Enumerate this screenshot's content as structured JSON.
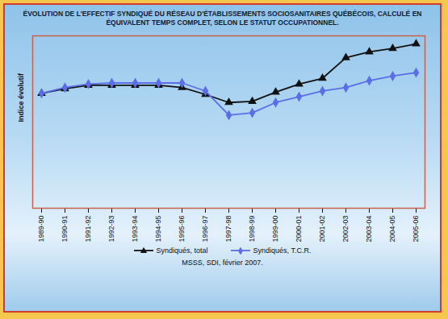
{
  "chart_data": {
    "type": "line",
    "title": "ÉVOLUTION DE L'EFFECTIF SYNDIQUÉ DU RÉSEAU D'ÉTABLISSEMENTS SOCIOSANITAIRES QUÉBÉCOIS, CALCULÉ EN ÉQUIVALENT TEMPS COMPLET, SELON LE STATUT OCCUPATIONNEL.",
    "y_label": "Indice évolutif",
    "caption": "MSSS, SDI, février 2007.",
    "categories": [
      "1989-90",
      "1990-91",
      "1991-92",
      "1992-93",
      "1993-94",
      "1994-95",
      "1995-96",
      "1996-97",
      "1997-98",
      "1998-99",
      "1999-00",
      "2000-01",
      "2001-02",
      "2002-03",
      "2003-04",
      "2004-05",
      "2005-06"
    ],
    "series": [
      {
        "name": "Syndiqués, total",
        "color": "#111111",
        "marker": "triangle",
        "values": [
          100,
          104,
          107,
          107,
          107,
          107,
          105,
          99,
          92,
          93,
          101,
          108,
          113,
          131,
          136,
          139,
          143
        ]
      },
      {
        "name": "Syndiqués, T.C.R.",
        "color": "#5b6ee6",
        "marker": "diamond",
        "values": [
          100,
          105,
          108,
          109,
          109,
          109,
          109,
          102,
          81,
          83,
          92,
          97,
          102,
          105,
          111,
          115,
          118
        ]
      }
    ],
    "ylim": [
      0,
      150
    ],
    "yticks": [],
    "tick_labels": "x",
    "grid": false,
    "legend": "bottom"
  }
}
